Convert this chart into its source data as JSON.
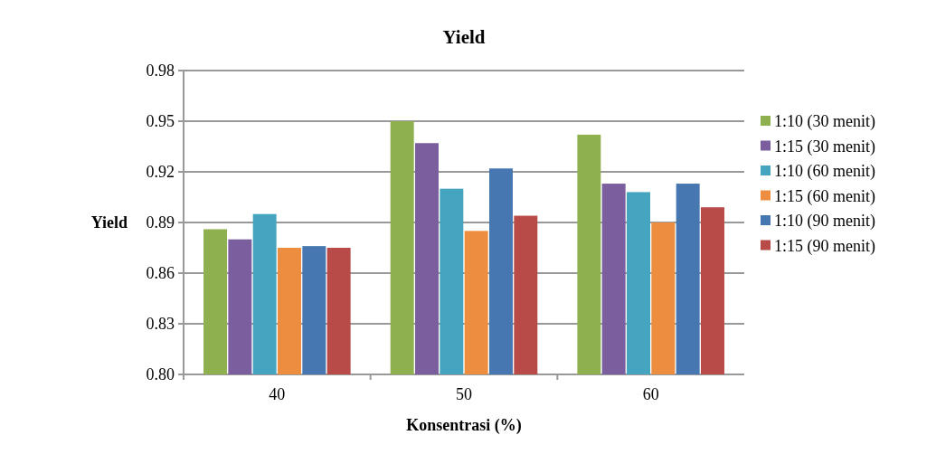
{
  "chart_data": {
    "type": "bar",
    "title": "Yield",
    "xlabel": "Konsentrasi (%)",
    "ylabel": "Yield",
    "categories": [
      "40",
      "50",
      "60"
    ],
    "series": [
      {
        "name": "1:10 (30 menit)",
        "color": "#8fb04f",
        "values": [
          0.886,
          0.95,
          0.942
        ]
      },
      {
        "name": "1:15 (30 menit)",
        "color": "#7b5e9e",
        "values": [
          0.88,
          0.937,
          0.913
        ]
      },
      {
        "name": "1:10 (60 menit)",
        "color": "#45a5c0",
        "values": [
          0.895,
          0.91,
          0.908
        ]
      },
      {
        "name": "1:15 (60 menit)",
        "color": "#ec8d3f",
        "values": [
          0.875,
          0.885,
          0.89
        ]
      },
      {
        "name": "1:10 (90 menit)",
        "color": "#4677b0",
        "values": [
          0.876,
          0.922,
          0.913
        ]
      },
      {
        "name": "1:15 (90 menit)",
        "color": "#b84a47",
        "values": [
          0.875,
          0.894,
          0.899
        ]
      }
    ],
    "ylim": [
      0.8,
      0.98
    ],
    "yticks": [
      {
        "value": 0.8,
        "label": "0.80"
      },
      {
        "value": 0.83,
        "label": "0.83"
      },
      {
        "value": 0.86,
        "label": "0.86"
      },
      {
        "value": 0.89,
        "label": "0.89"
      },
      {
        "value": 0.92,
        "label": "0.92"
      },
      {
        "value": 0.95,
        "label": "0.95"
      },
      {
        "value": 0.98,
        "label": "0.98"
      }
    ],
    "grid": "y",
    "legend": "right"
  }
}
